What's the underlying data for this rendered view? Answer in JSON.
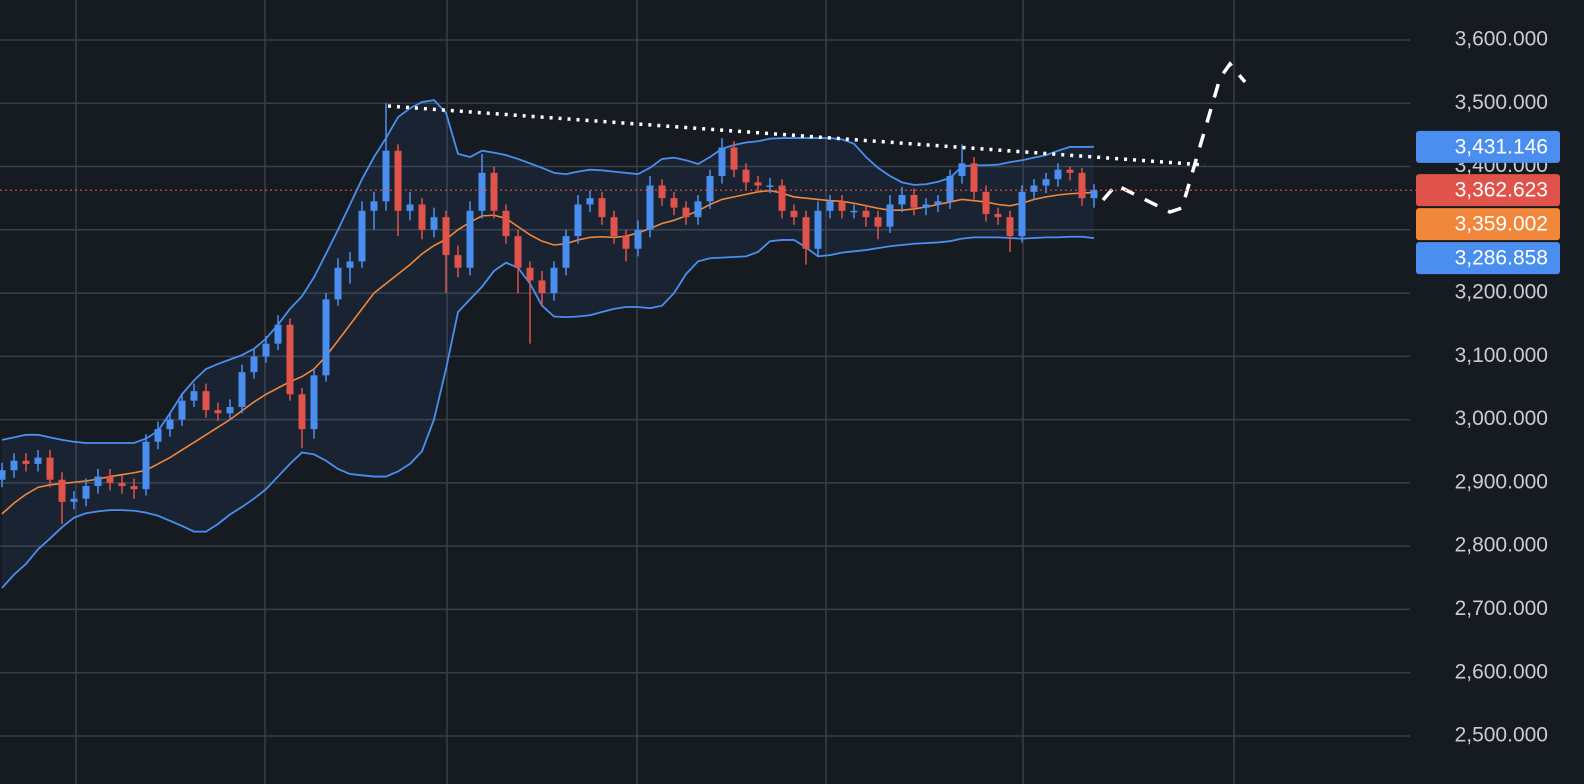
{
  "chart_data": {
    "type": "candlestick",
    "ylim": [
      2424.1,
      3663.2
    ],
    "yticks": [
      {
        "value": 2500,
        "label": "2,500.000"
      },
      {
        "value": 2600,
        "label": "2,600.000"
      },
      {
        "value": 2700,
        "label": "2,700.000"
      },
      {
        "value": 2800,
        "label": "2,800.000"
      },
      {
        "value": 2900,
        "label": "2,900.000"
      },
      {
        "value": 3000,
        "label": "3,000.000"
      },
      {
        "value": 3100,
        "label": "3,100.000"
      },
      {
        "value": 3200,
        "label": "3,200.000"
      },
      {
        "value": 3300,
        "label": "3,300.000"
      },
      {
        "value": 3400,
        "label": "3,400.000"
      },
      {
        "value": 3500,
        "label": "3,500.000"
      },
      {
        "value": 3600,
        "label": "3,600.000"
      }
    ],
    "grid": true,
    "up_color": "#4a8ff0",
    "down_color": "#e0534a",
    "open": [
      2905,
      2920,
      2935,
      2930,
      2940,
      2905,
      2870,
      2875,
      2895,
      2910,
      2900,
      2895,
      2890,
      2965,
      2985,
      3000,
      3030,
      3045,
      3015,
      3010,
      3020,
      3075,
      3100,
      3120,
      3150,
      3040,
      2985,
      3070,
      3190,
      3240,
      3250,
      3330,
      3345,
      3425,
      3330,
      3340,
      3300,
      3320,
      3260,
      3240,
      3330,
      3390,
      3330,
      3290,
      3240,
      3220,
      3200,
      3240,
      3290,
      3340,
      3350,
      3320,
      3290,
      3270,
      3300,
      3370,
      3350,
      3335,
      3320,
      3345,
      3385,
      3430,
      3395,
      3375,
      3370,
      3370,
      3330,
      3320,
      3270,
      3330,
      3345,
      3330,
      3330,
      3320,
      3305,
      3340,
      3355,
      3335,
      3340,
      3345,
      3385,
      3405,
      3360,
      3325,
      3320,
      3290,
      3360,
      3370,
      3380,
      3395,
      3390,
      3350
    ],
    "high": [
      2932,
      2947,
      2947,
      2952,
      2952,
      2917,
      2887,
      2907,
      2922,
      2922,
      2912,
      2907,
      2977,
      2997,
      3012,
      3042,
      3057,
      3057,
      3027,
      3032,
      3087,
      3112,
      3132,
      3165,
      3160,
      3050,
      3080,
      3200,
      3255,
      3265,
      3345,
      3360,
      3500,
      3435,
      3360,
      3350,
      3335,
      3330,
      3275,
      3345,
      3420,
      3400,
      3340,
      3300,
      3250,
      3235,
      3250,
      3300,
      3355,
      3362,
      3360,
      3330,
      3300,
      3315,
      3385,
      3380,
      3360,
      3345,
      3355,
      3395,
      3445,
      3440,
      3405,
      3385,
      3382,
      3380,
      3340,
      3330,
      3345,
      3355,
      3355,
      3340,
      3340,
      3330,
      3355,
      3368,
      3365,
      3350,
      3355,
      3395,
      3435,
      3415,
      3370,
      3335,
      3330,
      3370,
      3380,
      3390,
      3405,
      3400,
      3398,
      3372
    ],
    "low": [
      2893,
      2908,
      2918,
      2918,
      2893,
      2835,
      2858,
      2863,
      2883,
      2888,
      2883,
      2875,
      2880,
      2953,
      2973,
      2990,
      3020,
      3003,
      2998,
      3000,
      3010,
      3065,
      3090,
      3110,
      3030,
      2955,
      2970,
      3060,
      3180,
      3215,
      3240,
      3300,
      3330,
      3290,
      3315,
      3285,
      3288,
      3200,
      3225,
      3228,
      3318,
      3318,
      3278,
      3200,
      3120,
      3180,
      3188,
      3228,
      3278,
      3328,
      3308,
      3278,
      3250,
      3258,
      3288,
      3338,
      3323,
      3308,
      3308,
      3333,
      3373,
      3383,
      3363,
      3358,
      3358,
      3318,
      3308,
      3245,
      3258,
      3318,
      3318,
      3318,
      3305,
      3285,
      3295,
      3328,
      3323,
      3323,
      3328,
      3333,
      3373,
      3348,
      3313,
      3308,
      3265,
      3280,
      3348,
      3358,
      3368,
      3378,
      3338,
      3335
    ],
    "close": [
      2920,
      2935,
      2930,
      2940,
      2905,
      2870,
      2875,
      2895,
      2910,
      2900,
      2895,
      2890,
      2965,
      2985,
      3000,
      3030,
      3045,
      3015,
      3010,
      3020,
      3075,
      3100,
      3120,
      3150,
      3040,
      2985,
      3070,
      3190,
      3240,
      3250,
      3330,
      3345,
      3425,
      3330,
      3340,
      3300,
      3320,
      3260,
      3240,
      3330,
      3390,
      3330,
      3290,
      3240,
      3220,
      3200,
      3240,
      3290,
      3340,
      3350,
      3320,
      3290,
      3270,
      3300,
      3370,
      3350,
      3335,
      3320,
      3345,
      3385,
      3430,
      3395,
      3375,
      3370,
      3370,
      3330,
      3320,
      3270,
      3330,
      3345,
      3330,
      3330,
      3320,
      3305,
      3340,
      3355,
      3335,
      3340,
      3345,
      3385,
      3405,
      3360,
      3325,
      3320,
      3290,
      3360,
      3370,
      3380,
      3395,
      3390,
      3350,
      3362.623
    ],
    "bands": {
      "color": "#4a8ff0",
      "middle_color": "#f0873a",
      "upper": [
        2968,
        2972,
        2976,
        2976,
        2972,
        2968,
        2965,
        2963,
        2963,
        2963,
        2963,
        2963,
        2970,
        2982,
        3010,
        3040,
        3062,
        3080,
        3088,
        3095,
        3102,
        3112,
        3128,
        3150,
        3175,
        3195,
        3225,
        3262,
        3300,
        3340,
        3380,
        3415,
        3445,
        3478,
        3492,
        3502,
        3505,
        3485,
        3420,
        3415,
        3425,
        3422,
        3418,
        3412,
        3405,
        3398,
        3390,
        3388,
        3392,
        3395,
        3394,
        3392,
        3390,
        3388,
        3398,
        3412,
        3414,
        3410,
        3404,
        3415,
        3428,
        3434,
        3438,
        3440,
        3444,
        3445,
        3445,
        3445,
        3445,
        3445,
        3443,
        3436,
        3415,
        3398,
        3385,
        3375,
        3371,
        3372,
        3376,
        3382,
        3400,
        3402,
        3402,
        3403,
        3407,
        3410,
        3414,
        3418,
        3425,
        3431,
        3431,
        3431.146
      ],
      "middle": [
        2851,
        2868,
        2882,
        2893,
        2897,
        2899,
        2901,
        2903,
        2906,
        2910,
        2913,
        2916,
        2920,
        2930,
        2940,
        2952,
        2964,
        2976,
        2988,
        3000,
        3014,
        3028,
        3040,
        3050,
        3060,
        3068,
        3080,
        3100,
        3125,
        3150,
        3175,
        3200,
        3215,
        3230,
        3245,
        3262,
        3275,
        3285,
        3300,
        3312,
        3322,
        3323,
        3318,
        3305,
        3292,
        3282,
        3276,
        3278,
        3284,
        3288,
        3289,
        3288,
        3290,
        3295,
        3302,
        3310,
        3315,
        3322,
        3330,
        3340,
        3348,
        3352,
        3356,
        3360,
        3362,
        3358,
        3352,
        3350,
        3348,
        3346,
        3345,
        3342,
        3338,
        3334,
        3331,
        3331,
        3333,
        3336,
        3340,
        3344,
        3348,
        3346,
        3344,
        3340,
        3338,
        3342,
        3348,
        3352,
        3355,
        3357,
        3358,
        3359.002
      ],
      "lower": [
        2734,
        2755,
        2772,
        2795,
        2812,
        2830,
        2845,
        2852,
        2855,
        2857,
        2857,
        2856,
        2853,
        2848,
        2840,
        2832,
        2823,
        2823,
        2835,
        2850,
        2862,
        2875,
        2890,
        2910,
        2930,
        2948,
        2945,
        2935,
        2922,
        2914,
        2912,
        2910,
        2910,
        2918,
        2930,
        2950,
        3000,
        3080,
        3170,
        3190,
        3210,
        3235,
        3248,
        3240,
        3215,
        3180,
        3163,
        3162,
        3163,
        3165,
        3170,
        3175,
        3178,
        3178,
        3176,
        3180,
        3200,
        3230,
        3250,
        3255,
        3256,
        3257,
        3258,
        3265,
        3282,
        3284,
        3284,
        3272,
        3258,
        3260,
        3264,
        3266,
        3268,
        3271,
        3274,
        3276,
        3278,
        3279,
        3280,
        3282,
        3286,
        3288,
        3288,
        3288,
        3287,
        3286,
        3287,
        3288,
        3288,
        3289,
        3289,
        3286.858
      ]
    },
    "price_tags": [
      {
        "value": 3431.146,
        "label": "3,431.146",
        "color": "#4a8ff0"
      },
      {
        "value": 3362.623,
        "label": "3,362.623",
        "color": "#e0534a"
      },
      {
        "value": 3359.002,
        "label": "3,359.002",
        "color": "#f0873a"
      },
      {
        "value": 3286.858,
        "label": "3,286.858",
        "color": "#4a8ff0"
      }
    ]
  }
}
